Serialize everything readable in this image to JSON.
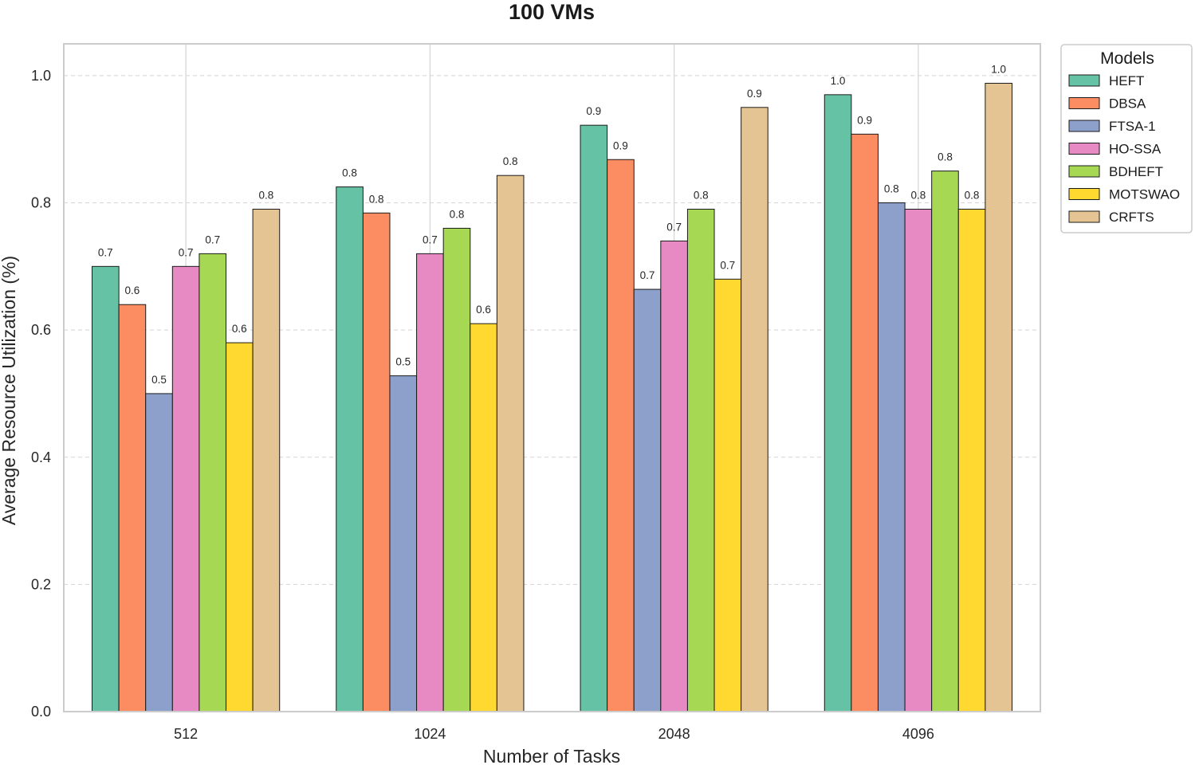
{
  "chart_data": {
    "type": "bar",
    "title": "100 VMs",
    "xlabel": "Number of Tasks",
    "ylabel": "Average Resource Utilization (%)",
    "ylim": [
      0,
      1.05
    ],
    "yticks": [
      "0.0",
      "0.2",
      "0.4",
      "0.6",
      "0.8",
      "1.0"
    ],
    "categories": [
      "512",
      "1024",
      "2048",
      "4096"
    ],
    "legend_title": "Models",
    "legend_position": "outside-top-right",
    "grid": "y-dashed, x-solid",
    "series": [
      {
        "name": "HEFT",
        "color": "#66c2a5",
        "values": [
          0.7,
          0.825,
          0.922,
          0.97
        ],
        "labels": [
          "0.7",
          "0.8",
          "0.9",
          "1.0"
        ]
      },
      {
        "name": "DBSA",
        "color": "#fc8d62",
        "values": [
          0.64,
          0.784,
          0.868,
          0.908
        ],
        "labels": [
          "0.6",
          "0.8",
          "0.9",
          "0.9"
        ]
      },
      {
        "name": "FTSA-1",
        "color": "#8da0cb",
        "values": [
          0.5,
          0.528,
          0.664,
          0.8
        ],
        "labels": [
          "0.5",
          "0.5",
          "0.7",
          "0.8"
        ]
      },
      {
        "name": "HO-SSA",
        "color": "#e78ac3",
        "values": [
          0.7,
          0.72,
          0.74,
          0.79
        ],
        "labels": [
          "0.7",
          "0.7",
          "0.7",
          "0.8"
        ]
      },
      {
        "name": "BDHEFT",
        "color": "#a6d854",
        "values": [
          0.72,
          0.76,
          0.79,
          0.85
        ],
        "labels": [
          "0.7",
          "0.8",
          "0.8",
          "0.8"
        ]
      },
      {
        "name": "MOTSWAO",
        "color": "#ffd92f",
        "values": [
          0.58,
          0.61,
          0.68,
          0.79
        ],
        "labels": [
          "0.6",
          "0.6",
          "0.7",
          "0.8"
        ]
      },
      {
        "name": "CRFTS",
        "color": "#e5c494",
        "values": [
          0.79,
          0.843,
          0.95,
          0.988
        ],
        "labels": [
          "0.8",
          "0.8",
          "0.9",
          "1.0"
        ]
      }
    ]
  }
}
